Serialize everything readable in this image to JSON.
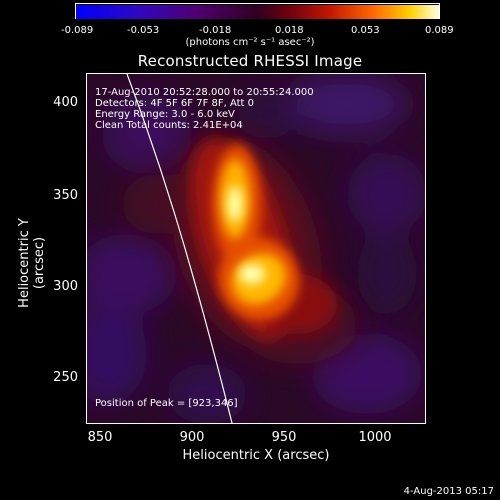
{
  "colorbar": {
    "ticks": [
      "-0.089",
      "-0.053",
      "-0.018",
      "0.018",
      "0.053",
      "0.089"
    ],
    "units": "(photons cm⁻² s⁻¹ asec⁻²)"
  },
  "image": {
    "title": "Reconstructed RHESSI Image",
    "info": {
      "time": "17-Aug-2010 20:52:28.000 to 20:55:24.000",
      "detectors": "Detectors: 4F 5F 6F 7F 8F, Att 0",
      "energy": "Energy Range: 3.0 - 6.0 keV",
      "clean": "Clean    Total counts: 2.41E+04"
    },
    "peak": "Position of Peak = [923,346]"
  },
  "axes": {
    "xlabel": "Heliocentric X (arcsec)",
    "ylabel": "Heliocentric Y (arcsec)",
    "xticks": [
      "850",
      "900",
      "950",
      "1000"
    ],
    "yticks": [
      "400",
      "350",
      "300",
      "250"
    ]
  },
  "timestamp": "4-Aug-2013 05:17",
  "colors": {
    "background": "#000000",
    "limb": "#ffffff",
    "colormap": [
      "#0000ff",
      "#3a00a0",
      "#40004a",
      "#7a0020",
      "#c21e00",
      "#ff7a00",
      "#ffe000",
      "#ffffe0"
    ]
  }
}
